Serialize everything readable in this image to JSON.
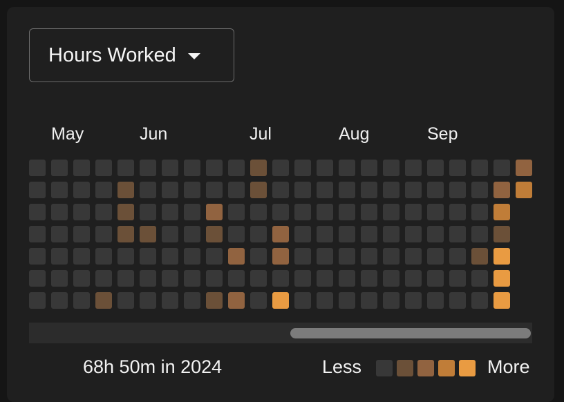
{
  "dropdown": {
    "label": "Hours Worked",
    "icon": "caret-down-icon"
  },
  "months": [
    "May",
    "Jun",
    "Jul",
    "Aug",
    "Sep"
  ],
  "levels": [
    "#383838",
    "#6b5038",
    "#916340",
    "#c07d38",
    "#e99b42"
  ],
  "grid": {
    "columns": [
      [
        0,
        0,
        0,
        0,
        0,
        0,
        0
      ],
      [
        0,
        0,
        0,
        0,
        0,
        0,
        0
      ],
      [
        0,
        0,
        0,
        0,
        0,
        0,
        0
      ],
      [
        0,
        0,
        0,
        0,
        0,
        0,
        1
      ],
      [
        0,
        1,
        1,
        1,
        0,
        0,
        0
      ],
      [
        0,
        0,
        0,
        1,
        0,
        0,
        0
      ],
      [
        0,
        0,
        0,
        0,
        0,
        0,
        0
      ],
      [
        0,
        0,
        0,
        0,
        0,
        0,
        0
      ],
      [
        0,
        0,
        2,
        1,
        0,
        0,
        1
      ],
      [
        0,
        0,
        0,
        0,
        2,
        0,
        2
      ],
      [
        1,
        1,
        0,
        0,
        0,
        0,
        0
      ],
      [
        0,
        0,
        0,
        2,
        2,
        0,
        4
      ],
      [
        0,
        0,
        0,
        0,
        0,
        0,
        0
      ],
      [
        0,
        0,
        0,
        0,
        0,
        0,
        0
      ],
      [
        0,
        0,
        0,
        0,
        0,
        0,
        0
      ],
      [
        0,
        0,
        0,
        0,
        0,
        0,
        0
      ],
      [
        0,
        0,
        0,
        0,
        0,
        0,
        0
      ],
      [
        0,
        0,
        0,
        0,
        0,
        0,
        0
      ],
      [
        0,
        0,
        0,
        0,
        0,
        0,
        0
      ],
      [
        0,
        0,
        0,
        0,
        0,
        0,
        0
      ],
      [
        0,
        0,
        0,
        0,
        1,
        0,
        0
      ],
      [
        0,
        2,
        3,
        1,
        4,
        4,
        4
      ],
      [
        2,
        3
      ]
    ]
  },
  "summary": {
    "total": "68h 50m in 2024"
  },
  "legend": {
    "less": "Less",
    "more": "More"
  }
}
